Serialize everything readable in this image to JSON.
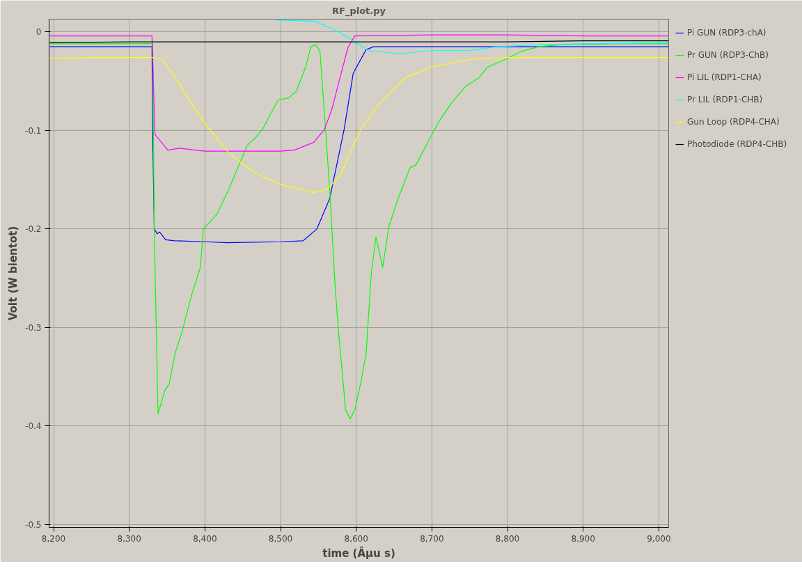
{
  "chart_data": {
    "type": "line",
    "title": "RF_plot.py",
    "xlabel": "time (Âµu s)",
    "ylabel": "Volt (W bientot)",
    "xlim": [
      8194,
      9013
    ],
    "ylim": [
      -0.503,
      0.013
    ],
    "xticks": [
      {
        "value": 8200,
        "label": "8,200"
      },
      {
        "value": 8300,
        "label": "8,300"
      },
      {
        "value": 8400,
        "label": "8,400"
      },
      {
        "value": 8500,
        "label": "8,500"
      },
      {
        "value": 8600,
        "label": "8,600"
      },
      {
        "value": 8700,
        "label": "8,700"
      },
      {
        "value": 8800,
        "label": "8,800"
      },
      {
        "value": 8900,
        "label": "8,900"
      },
      {
        "value": 9000,
        "label": "9,000"
      }
    ],
    "yticks": [
      0,
      -0.1,
      -0.2,
      -0.3,
      -0.4,
      -0.5
    ],
    "grid": true,
    "legend": "top right",
    "marker": "none",
    "line_style": "solid",
    "series": [
      {
        "name": "Pi GUN (RDP3-chA)",
        "color": "#0000ff",
        "x": [
          8195,
          8250,
          8300,
          8330,
          8331,
          8333,
          8337,
          8340,
          8348,
          8360,
          8400,
          8430,
          8500,
          8530,
          8548,
          8565,
          8584,
          8596,
          8613,
          8623,
          8700,
          8800,
          8900,
          9013
        ],
        "values": [
          -0.015,
          -0.015,
          -0.015,
          -0.015,
          -0.105,
          -0.2,
          -0.205,
          -0.203,
          -0.211,
          -0.212,
          -0.213,
          -0.214,
          -0.213,
          -0.212,
          -0.2,
          -0.169,
          -0.099,
          -0.042,
          -0.018,
          -0.015,
          -0.015,
          -0.015,
          -0.015,
          -0.015
        ]
      },
      {
        "name": "Pr GUN (RDP3-ChB)",
        "color": "#00ff00",
        "x": [
          8195,
          8250,
          8300,
          8331,
          8333,
          8338,
          8347,
          8353,
          8361,
          8370,
          8382,
          8394,
          8398,
          8416,
          8432,
          8456,
          8466,
          8476,
          8487,
          8497,
          8511,
          8521,
          8533,
          8540,
          8546,
          8552,
          8558,
          8565,
          8572,
          8576,
          8586,
          8592,
          8598,
          8606,
          8613,
          8616,
          8620,
          8626,
          8635,
          8643,
          8654,
          8671,
          8679,
          8698,
          8711,
          8725,
          8745,
          8763,
          8773,
          8797,
          8817,
          8841,
          8868,
          8950,
          9013
        ],
        "values": [
          -0.012,
          -0.012,
          -0.012,
          -0.012,
          -0.2,
          -0.388,
          -0.364,
          -0.357,
          -0.325,
          -0.304,
          -0.268,
          -0.239,
          -0.2,
          -0.185,
          -0.159,
          -0.115,
          -0.108,
          -0.099,
          -0.083,
          -0.069,
          -0.067,
          -0.06,
          -0.036,
          -0.015,
          -0.013,
          -0.019,
          -0.083,
          -0.161,
          -0.257,
          -0.299,
          -0.384,
          -0.393,
          -0.384,
          -0.356,
          -0.327,
          -0.291,
          -0.245,
          -0.208,
          -0.239,
          -0.198,
          -0.172,
          -0.138,
          -0.135,
          -0.107,
          -0.089,
          -0.073,
          -0.055,
          -0.046,
          -0.036,
          -0.028,
          -0.02,
          -0.015,
          -0.013,
          -0.012,
          -0.012
        ]
      },
      {
        "name": "Pi LIL (RDP1-CHA)",
        "color": "#ff00ff",
        "x": [
          8195,
          8250,
          8300,
          8330,
          8334,
          8351,
          8366,
          8400,
          8450,
          8500,
          8518,
          8544,
          8558,
          8568,
          8579,
          8589,
          8598,
          8700,
          8800,
          8900,
          9013
        ],
        "values": [
          -0.004,
          -0.004,
          -0.004,
          -0.004,
          -0.104,
          -0.12,
          -0.118,
          -0.121,
          -0.121,
          -0.121,
          -0.12,
          -0.112,
          -0.099,
          -0.078,
          -0.045,
          -0.016,
          -0.004,
          -0.003,
          -0.003,
          -0.004,
          -0.004
        ]
      },
      {
        "name": "Pr LIL (RDP1-CHB)",
        "color": "#00ffff",
        "x": [
          8494,
          8545,
          8572,
          8592,
          8616,
          8657,
          8698,
          8749,
          8786,
          8840,
          8900,
          9013
        ],
        "values": [
          0.012,
          0.011,
          0.002,
          -0.007,
          -0.019,
          -0.022,
          -0.019,
          -0.019,
          -0.015,
          -0.013,
          -0.012,
          -0.011
        ]
      },
      {
        "name": "Gun Loop (RDP4-CHA)",
        "color": "#ffff00",
        "x": [
          8195,
          8250,
          8300,
          8330,
          8344,
          8364,
          8385,
          8406,
          8432,
          8466,
          8500,
          8544,
          8561,
          8579,
          8586,
          8606,
          8630,
          8664,
          8698,
          8749,
          8800,
          8900,
          9013
        ],
        "values": [
          -0.027,
          -0.026,
          -0.026,
          -0.026,
          -0.028,
          -0.05,
          -0.076,
          -0.099,
          -0.123,
          -0.143,
          -0.155,
          -0.163,
          -0.16,
          -0.146,
          -0.133,
          -0.099,
          -0.073,
          -0.047,
          -0.036,
          -0.028,
          -0.026,
          -0.026,
          -0.026
        ]
      },
      {
        "name": "Photodiode (RDP4-CHB)",
        "color": "#000000",
        "x": [
          8195,
          8300,
          8400,
          8500,
          8600,
          8700,
          8800,
          8900,
          9013
        ],
        "values": [
          -0.011,
          -0.01,
          -0.01,
          -0.01,
          -0.01,
          -0.01,
          -0.01,
          -0.009,
          -0.009
        ]
      }
    ]
  }
}
